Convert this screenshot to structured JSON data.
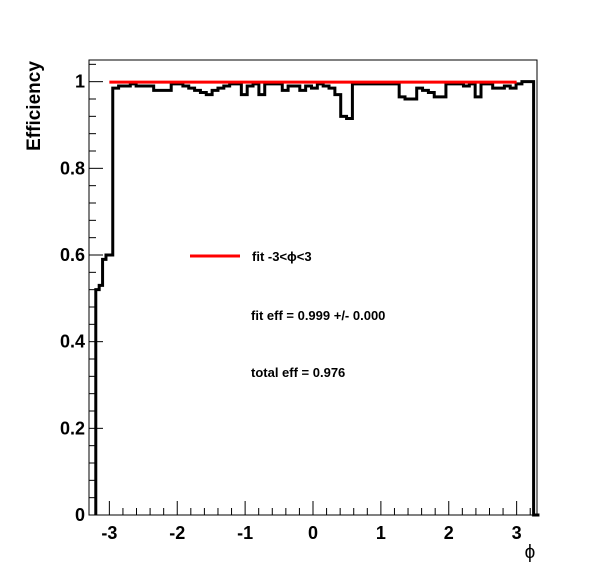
{
  "chart_data": {
    "type": "line",
    "xlabel": "ϕ",
    "ylabel": "Efficiency",
    "xlim": [
      -3.3,
      3.3
    ],
    "ylim": [
      0,
      1.05
    ],
    "x_major_ticks": [
      -3,
      -2,
      -1,
      0,
      1,
      2,
      3
    ],
    "x_tick_labels": [
      "-3",
      "-2",
      "-1",
      "0",
      "1",
      "2",
      "3"
    ],
    "y_major_ticks": [
      0,
      0.2,
      0.4,
      0.6,
      0.8,
      1.0
    ],
    "y_tick_labels": [
      "0",
      "0.2",
      "0.4",
      "0.6",
      "0.8",
      "1"
    ],
    "grid": false,
    "histogram": {
      "style": "step",
      "color": "#000000",
      "edges": [
        -3.2,
        -3.15,
        -3.1,
        -3.05,
        -3.0,
        -2.95
      ],
      "values": [
        0.52,
        0.53,
        0.59,
        0.6,
        0.6,
        0.985
      ],
      "continuation_values": [
        0.99,
        0.99,
        0.995,
        0.99,
        0.99,
        0.99,
        0.98,
        0.98,
        0.98,
        0.995,
        0.995,
        0.99,
        0.985,
        0.98,
        0.975,
        0.97,
        0.98,
        0.985,
        0.99,
        0.995,
        0.995,
        0.97,
        0.99,
        0.995,
        0.97,
        0.995,
        0.995,
        0.995,
        0.98,
        0.99,
        0.99,
        0.98,
        0.99,
        0.985,
        0.995,
        0.99,
        0.985,
        0.97,
        0.92,
        0.915,
        0.995,
        0.995,
        0.995,
        0.995,
        0.995,
        0.995,
        0.995,
        0.995,
        0.965,
        0.96,
        0.96,
        0.985,
        0.98,
        0.975,
        0.965,
        0.965,
        0.995,
        0.995,
        0.995,
        0.99,
        0.995,
        0.965,
        0.995,
        0.995,
        0.985,
        0.985,
        0.99,
        0.985,
        0.995,
        1.0,
        1.0,
        0.0
      ],
      "continuation_start": -2.95,
      "continuation_end": 3.25
    },
    "fit_line": {
      "x": [
        -3.0,
        3.0
      ],
      "y": [
        0.999,
        0.999
      ],
      "color": "#ff0000"
    },
    "legend": {
      "entries": [
        {
          "name": "fit -3<ϕ<3",
          "color": "#ff0000"
        }
      ],
      "placement": "center-left"
    },
    "annotations": [
      "fit eff = 0.999 +/- 0.000",
      "total eff = 0.976"
    ]
  }
}
